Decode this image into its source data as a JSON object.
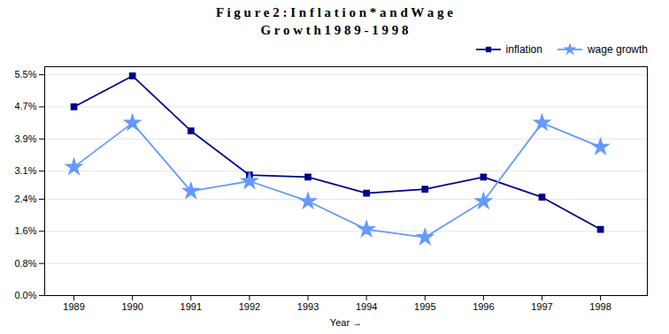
{
  "chart_data": {
    "type": "line",
    "title": "F i g u r e   2 :   I n f l a t i o n *   a n d   W a g e\nG r o w t h   1 9 8 9 - 1 9 9 8",
    "x": [
      1989,
      1990,
      1991,
      1992,
      1993,
      1994,
      1995,
      1996,
      1997,
      1998
    ],
    "series": [
      {
        "name": "inflation",
        "color": "#00008B",
        "marker": "square",
        "values": [
          4.7,
          5.47,
          4.1,
          3.0,
          2.95,
          2.55,
          2.65,
          2.95,
          2.45,
          1.65
        ]
      },
      {
        "name": "wage growth",
        "color": "#6699FF",
        "marker": "star",
        "values": [
          3.2,
          4.3,
          2.6,
          2.85,
          2.35,
          1.65,
          1.45,
          2.35,
          4.3,
          3.7
        ]
      }
    ],
    "xlabel": "Year",
    "xlim": [
      1988.5,
      1998.8
    ],
    "xticks": [
      1989,
      1990,
      1991,
      1992,
      1993,
      1994,
      1995,
      1996,
      1997,
      1998
    ],
    "ylim": [
      0.0,
      5.7
    ],
    "yticks": [
      {
        "value": 0.0,
        "label": "0.0%"
      },
      {
        "value": 0.8,
        "label": "0.8%"
      },
      {
        "value": 1.6,
        "label": "1.6%"
      },
      {
        "value": 2.4,
        "label": "2.4%"
      },
      {
        "value": 3.1,
        "label": "3.1%"
      },
      {
        "value": 3.9,
        "label": "3.9%"
      },
      {
        "value": 4.7,
        "label": "4.7%"
      },
      {
        "value": 5.5,
        "label": "5.5%"
      }
    ],
    "grid": true,
    "legend": "upper right"
  }
}
